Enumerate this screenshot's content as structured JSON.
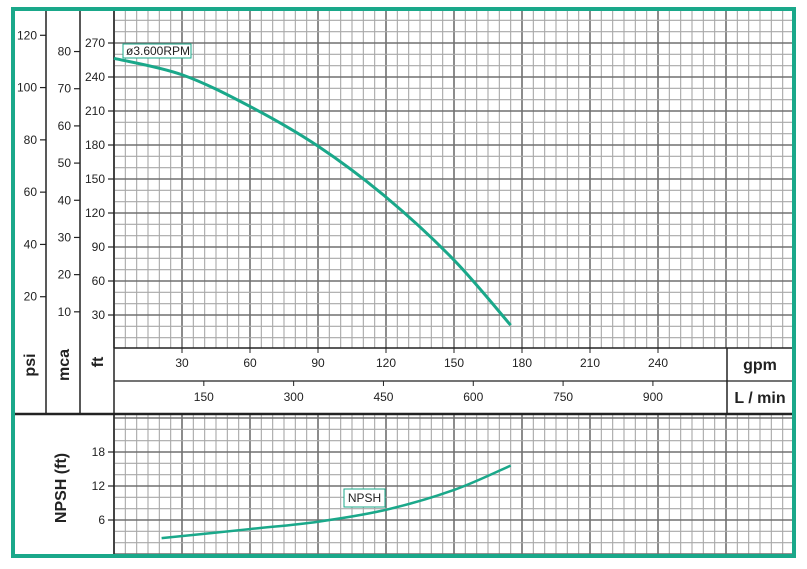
{
  "colors": {
    "accent": "#1aa88a",
    "grid_minor": "#a8a8a8",
    "grid_major": "#707070",
    "axis": "#222222"
  },
  "chart_data": [
    {
      "type": "line",
      "title": "",
      "x": {
        "label": "gpm",
        "ticks": [
          30,
          60,
          90,
          120,
          150,
          180,
          210,
          240
        ],
        "range": [
          0,
          300
        ]
      },
      "x2": {
        "label": "L / min",
        "ticks": [
          150,
          300,
          450,
          600,
          750,
          900
        ]
      },
      "y_axes": [
        {
          "label": "psi",
          "ticks": [
            20,
            40,
            60,
            80,
            100,
            120
          ]
        },
        {
          "label": "mca",
          "ticks": [
            10,
            20,
            30,
            40,
            50,
            60,
            70,
            80
          ]
        },
        {
          "label": "ft",
          "ticks": [
            30,
            60,
            90,
            120,
            150,
            180,
            210,
            240,
            270
          ],
          "range": [
            0,
            300
          ]
        }
      ],
      "grid": true,
      "series": [
        {
          "name": "ø3.600RPM",
          "x": [
            0,
            30,
            60,
            90,
            120,
            150,
            175
          ],
          "y": [
            256.5,
            242,
            214,
            179,
            134,
            78.5,
            21
          ]
        }
      ]
    },
    {
      "type": "line",
      "title": "",
      "x": {
        "label": "gpm",
        "range": [
          0,
          300
        ]
      },
      "y": {
        "label": "NPSH (ft)",
        "ticks": [
          6,
          12,
          18
        ],
        "range": [
          0,
          24.7
        ]
      },
      "grid": true,
      "series": [
        {
          "name": "NPSH",
          "x": [
            21,
            60,
            90,
            120,
            150,
            175
          ],
          "y": [
            2.8,
            4.4,
            5.7,
            7.8,
            11.3,
            15.6
          ]
        }
      ]
    }
  ]
}
